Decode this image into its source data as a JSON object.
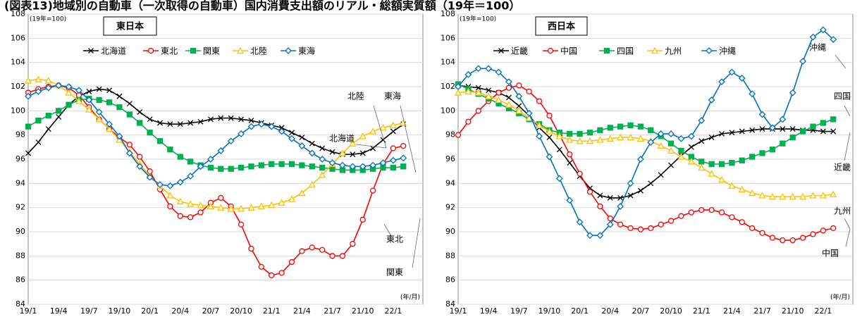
{
  "title": "(図表13)地域別の自動車（一次取得の自動車）国内消費支出額のリアル・総額実質額（19年＝100）",
  "chart_data": [
    {
      "type": "line",
      "panel": "東日本",
      "index_note": "(19年=100)",
      "x_unit": "(年/月)",
      "categories": [
        "19/1",
        null,
        null,
        "19/4",
        null,
        null,
        "19/7",
        null,
        null,
        "19/10",
        null,
        null,
        "20/1",
        null,
        null,
        "20/4",
        null,
        null,
        "20/7",
        null,
        null,
        "20/10",
        null,
        null,
        "21/1",
        null,
        null,
        "21/4",
        null,
        null,
        "21/7",
        null,
        null,
        "21/10",
        null,
        null,
        "22/1",
        null
      ],
      "ylim": [
        84,
        108
      ],
      "yticks": [
        84,
        86,
        88,
        90,
        92,
        94,
        96,
        98,
        100,
        102,
        104,
        106,
        108
      ],
      "grid": true,
      "series": [
        {
          "name": "北海道",
          "color": "#000000",
          "marker": "x",
          "values": [
            96.5,
            97.4,
            98.5,
            99.5,
            100.5,
            101.2,
            101.6,
            101.8,
            101.7,
            101.2,
            100.6,
            99.9,
            99.3,
            99.0,
            98.9,
            98.9,
            99.0,
            99.1,
            99.3,
            99.4,
            99.4,
            99.3,
            99.2,
            99.0,
            98.8,
            98.6,
            98.2,
            97.8,
            97.3,
            96.9,
            96.6,
            96.4,
            96.4,
            96.5,
            96.9,
            97.6,
            98.3,
            98.9
          ]
        },
        {
          "name": "東北",
          "color": "#ff0000",
          "marker": "circle",
          "values": [
            101.5,
            101.8,
            102.0,
            102.1,
            101.9,
            101.3,
            100.3,
            99.3,
            98.5,
            97.8,
            97.2,
            96.2,
            95.0,
            93.5,
            92.1,
            91.3,
            91.2,
            91.6,
            92.4,
            92.8,
            92.1,
            90.6,
            88.6,
            87.1,
            86.4,
            86.6,
            87.5,
            88.4,
            88.7,
            88.5,
            88.0,
            88.0,
            89.0,
            91.0,
            93.4,
            95.6,
            96.9,
            97.1
          ]
        },
        {
          "name": "関東",
          "color": "#00b050",
          "marker": "square",
          "values": [
            98.7,
            99.2,
            99.6,
            100.0,
            100.5,
            100.9,
            101.0,
            100.9,
            100.7,
            100.3,
            99.7,
            99.0,
            98.2,
            97.5,
            96.8,
            96.2,
            95.8,
            95.5,
            95.3,
            95.2,
            95.2,
            95.3,
            95.4,
            95.5,
            95.6,
            95.6,
            95.6,
            95.5,
            95.4,
            95.3,
            95.2,
            95.1,
            95.1,
            95.1,
            95.2,
            95.3,
            95.3,
            95.4
          ]
        },
        {
          "name": "北陸",
          "color": "#ffc000",
          "marker": "triangle",
          "values": [
            102.5,
            102.6,
            102.5,
            102.1,
            101.5,
            100.8,
            100.1,
            99.3,
            98.5,
            97.6,
            96.6,
            95.6,
            94.6,
            93.8,
            93.0,
            92.5,
            92.3,
            92.2,
            92.1,
            92.0,
            91.9,
            91.9,
            92.0,
            92.1,
            92.2,
            92.4,
            92.7,
            93.2,
            93.9,
            94.7,
            95.6,
            96.5,
            97.3,
            97.9,
            98.3,
            98.6,
            98.8,
            99.0
          ]
        },
        {
          "name": "東海",
          "color": "#0070c0",
          "marker": "diamond",
          "values": [
            101.2,
            101.6,
            101.9,
            102.1,
            102.0,
            101.7,
            100.9,
            99.9,
            98.9,
            97.9,
            96.5,
            95.4,
            94.5,
            93.9,
            93.8,
            94.1,
            94.6,
            95.4,
            96.0,
            96.7,
            97.5,
            98.1,
            98.7,
            98.9,
            98.7,
            98.3,
            97.7,
            97.1,
            96.5,
            96.0,
            95.7,
            95.5,
            95.4,
            95.4,
            95.5,
            95.7,
            95.9,
            96.1
          ]
        }
      ],
      "annotations": [
        "北陸",
        "東海",
        "北海道",
        "関東",
        "東北"
      ]
    },
    {
      "type": "line",
      "panel": "西日本",
      "index_note": "(19年=100)",
      "x_unit": "(年/月)",
      "categories": [
        "19/1",
        null,
        null,
        "19/4",
        null,
        null,
        "19/7",
        null,
        null,
        "19/10",
        null,
        null,
        "20/1",
        null,
        null,
        "20/4",
        null,
        null,
        "20/7",
        null,
        null,
        "20/10",
        null,
        null,
        "21/1",
        null,
        null,
        "21/4",
        null,
        null,
        "21/7",
        null,
        null,
        "21/10",
        null,
        null,
        "22/1",
        null
      ],
      "ylim": [
        84,
        108
      ],
      "yticks": [
        84,
        86,
        88,
        90,
        92,
        94,
        96,
        98,
        100,
        102,
        104,
        106,
        108
      ],
      "grid": true,
      "series": [
        {
          "name": "近畿",
          "color": "#000000",
          "marker": "x",
          "values": [
            102.1,
            102.0,
            101.9,
            101.7,
            101.5,
            101.1,
            100.4,
            99.6,
            98.6,
            97.8,
            96.8,
            95.7,
            94.6,
            93.6,
            93.0,
            92.8,
            92.8,
            93.0,
            93.4,
            94.0,
            94.7,
            95.5,
            96.3,
            97.0,
            97.5,
            97.8,
            98.1,
            98.2,
            98.3,
            98.4,
            98.5,
            98.5,
            98.5,
            98.5,
            98.4,
            98.4,
            98.3,
            98.3
          ]
        },
        {
          "name": "中国",
          "color": "#ff0000",
          "marker": "circle",
          "values": [
            98.0,
            99.1,
            100.0,
            100.8,
            101.5,
            101.9,
            102.1,
            101.6,
            100.8,
            99.6,
            98.0,
            96.4,
            94.8,
            93.3,
            92.1,
            91.1,
            90.6,
            90.3,
            90.2,
            90.3,
            90.6,
            90.9,
            91.3,
            91.6,
            91.8,
            91.8,
            91.6,
            91.2,
            90.8,
            90.3,
            89.9,
            89.5,
            89.3,
            89.3,
            89.5,
            89.8,
            90.1,
            90.3
          ]
        },
        {
          "name": "四国",
          "color": "#00b050",
          "marker": "square",
          "values": [
            102.2,
            101.8,
            101.4,
            101.0,
            100.6,
            100.2,
            99.8,
            99.3,
            98.9,
            98.4,
            98.2,
            98.1,
            98.1,
            98.2,
            98.4,
            98.6,
            98.7,
            98.8,
            98.7,
            98.4,
            97.9,
            97.3,
            96.7,
            96.2,
            95.8,
            95.6,
            95.6,
            95.7,
            95.9,
            96.2,
            96.5,
            96.8,
            97.3,
            97.8,
            98.3,
            98.7,
            99.0,
            99.3
          ]
        },
        {
          "name": "九州",
          "color": "#ffc000",
          "marker": "triangle",
          "values": [
            101.5,
            101.6,
            101.5,
            101.2,
            100.9,
            100.5,
            100.0,
            99.4,
            98.8,
            98.3,
            97.9,
            97.6,
            97.5,
            97.5,
            97.6,
            97.7,
            97.8,
            97.8,
            97.7,
            97.5,
            97.1,
            96.7,
            96.2,
            95.8,
            95.3,
            94.8,
            94.3,
            93.8,
            93.5,
            93.2,
            93.0,
            92.9,
            92.9,
            92.9,
            92.9,
            93.0,
            93.0,
            93.1
          ]
        },
        {
          "name": "沖縄",
          "color": "#0070c0",
          "marker": "diamond",
          "values": [
            102.0,
            103.0,
            103.5,
            103.5,
            103.2,
            102.4,
            101.2,
            99.8,
            97.9,
            96.2,
            94.4,
            92.6,
            90.8,
            89.7,
            89.7,
            90.6,
            92.1,
            94.0,
            96.0,
            97.4,
            98.1,
            98.1,
            97.7,
            97.9,
            99.2,
            100.9,
            102.4,
            103.2,
            102.7,
            101.4,
            99.7,
            98.6,
            99.3,
            101.5,
            104.1,
            106.1,
            106.7,
            105.9
          ]
        }
      ],
      "annotations": [
        "沖縄",
        "四国",
        "近畿",
        "九州",
        "中国"
      ]
    }
  ]
}
